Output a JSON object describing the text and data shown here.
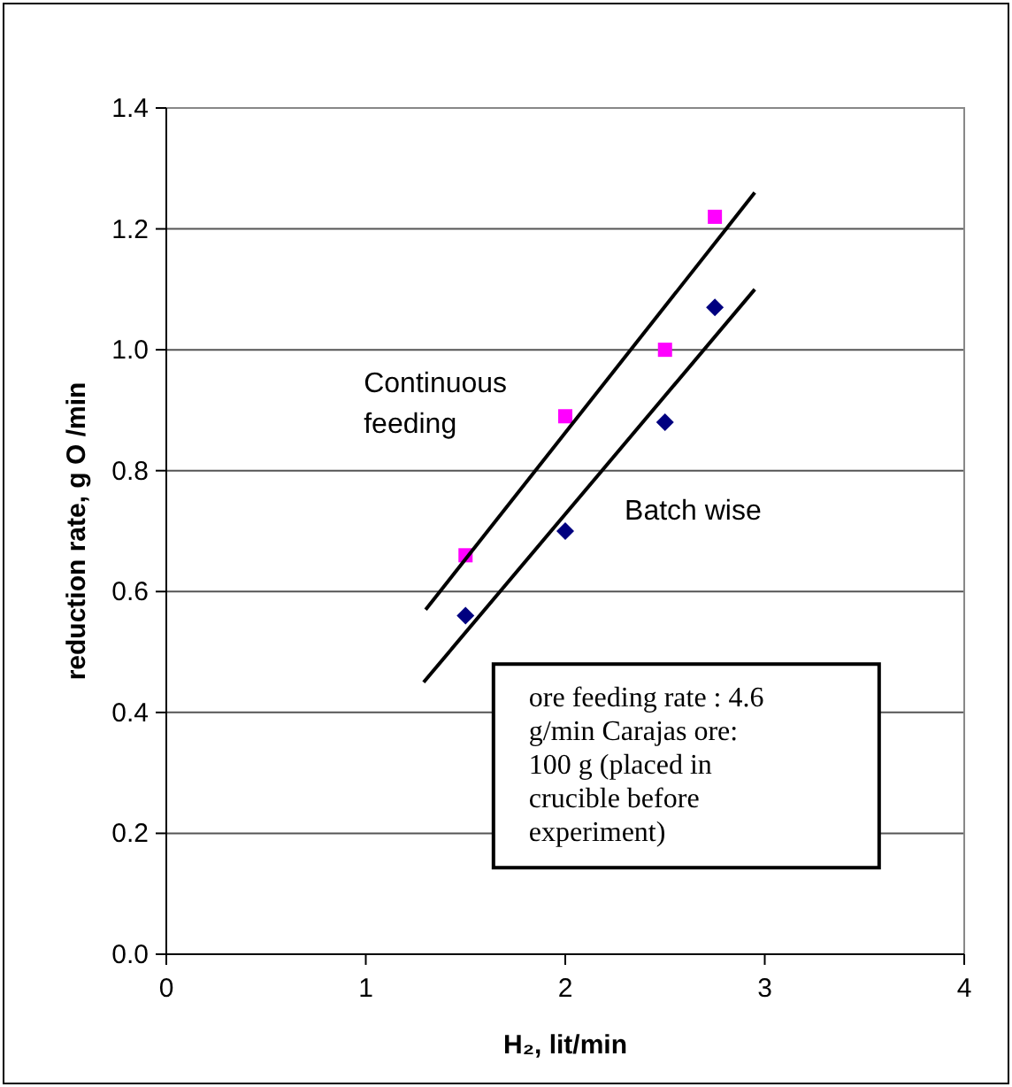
{
  "chart_data": {
    "type": "scatter",
    "xlabel": "H₂, lit/min",
    "ylabel": "reduction rate, g O /min",
    "xlim": [
      0,
      4
    ],
    "xticks": [
      0,
      1,
      2,
      3,
      4
    ],
    "ylim": [
      0,
      1.4
    ],
    "yticks": [
      {
        "value": 0,
        "label": "0.0"
      },
      {
        "value": 0.2,
        "label": "0.2"
      },
      {
        "value": 0.4,
        "label": "0.4"
      },
      {
        "value": 0.6,
        "label": "0.6"
      },
      {
        "value": 0.8,
        "label": "0.8"
      },
      {
        "value": 1.0,
        "label": "1.0"
      },
      {
        "value": 1.2,
        "label": "1.2"
      },
      {
        "value": 1.4,
        "label": "1.4"
      }
    ],
    "grid": "y",
    "legend": false,
    "series": [
      {
        "type": "scatter",
        "marker": "square",
        "color": "#ff00ff",
        "x": [
          1.5,
          2.0,
          2.5,
          2.75
        ],
        "values": [
          0.66,
          0.89,
          1.0,
          1.22
        ]
      },
      {
        "type": "scatter",
        "marker": "diamond",
        "color": "#000080",
        "x": [
          1.5,
          2.0,
          2.5,
          2.75
        ],
        "values": [
          0.56,
          0.7,
          0.88,
          1.07
        ]
      },
      {
        "type": "line",
        "name": "Continuous feeding",
        "marker": "none",
        "color": "#000000",
        "x": [
          1.3,
          2.95
        ],
        "values": [
          0.57,
          1.26
        ]
      },
      {
        "type": "line",
        "name": "Batch wise",
        "marker": "none",
        "color": "#000000",
        "x": [
          1.29,
          2.95
        ],
        "values": [
          0.45,
          1.1
        ]
      }
    ],
    "annotations": [
      "ore feeding rate : 4.6 g/min Carajas ore: 100 g (placed in crucible before experiment)"
    ]
  }
}
